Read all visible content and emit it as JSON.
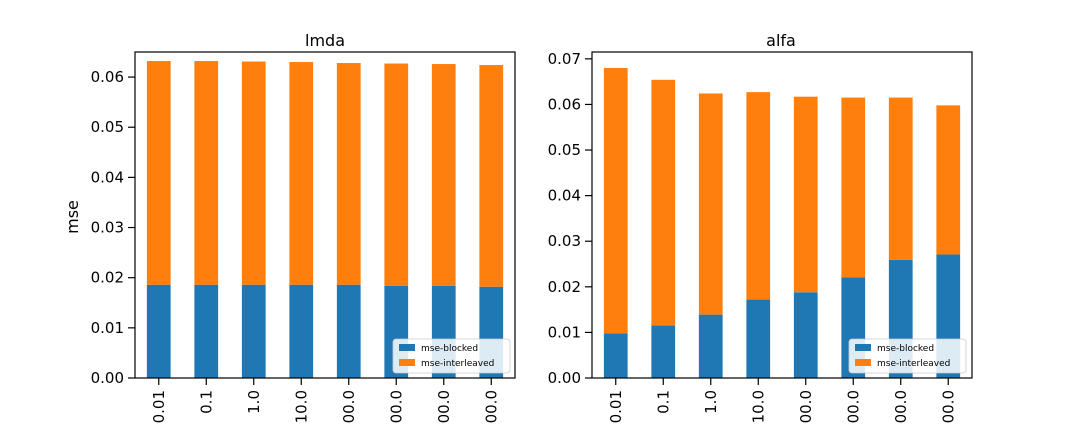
{
  "colors": {
    "blocked": "#1f77b4",
    "interleaved": "#ff7f0e"
  },
  "chart_data": [
    {
      "type": "bar",
      "stacked": true,
      "title": "lmda",
      "xlabel": "",
      "ylabel": "mse",
      "ylim": [
        0,
        0.065
      ],
      "yticks": [
        "0.00",
        "0.01",
        "0.02",
        "0.03",
        "0.04",
        "0.05",
        "0.06"
      ],
      "categories": [
        "0.01",
        "0.1",
        "1.0",
        "10.0",
        "00.0",
        "00.0",
        "00.0",
        "00.0"
      ],
      "series": [
        {
          "name": "mse-blocked",
          "values": [
            0.0186,
            0.0186,
            0.0186,
            0.0186,
            0.0186,
            0.0184,
            0.0184,
            0.0182
          ]
        },
        {
          "name": "mse-interleaved",
          "values": [
            0.0446,
            0.0446,
            0.0445,
            0.0444,
            0.0442,
            0.0443,
            0.0442,
            0.0442
          ]
        }
      ],
      "legend_position": "lower-right",
      "grid": false
    },
    {
      "type": "bar",
      "stacked": true,
      "title": "alfa",
      "xlabel": "",
      "ylabel": "",
      "ylim": [
        0,
        0.0715
      ],
      "yticks": [
        "0.00",
        "0.01",
        "0.02",
        "0.03",
        "0.04",
        "0.05",
        "0.06",
        "0.07"
      ],
      "categories": [
        "0.01",
        "0.1",
        "1.0",
        "10.0",
        "00.0",
        "00.0",
        "00.0",
        "00.0"
      ],
      "series": [
        {
          "name": "mse-blocked",
          "values": [
            0.0098,
            0.0115,
            0.0139,
            0.0172,
            0.0188,
            0.0221,
            0.0259,
            0.0271
          ]
        },
        {
          "name": "mse-interleaved",
          "values": [
            0.0582,
            0.0539,
            0.0485,
            0.0455,
            0.0429,
            0.0394,
            0.0356,
            0.0327
          ]
        }
      ],
      "legend_position": "lower-right",
      "grid": false
    }
  ]
}
